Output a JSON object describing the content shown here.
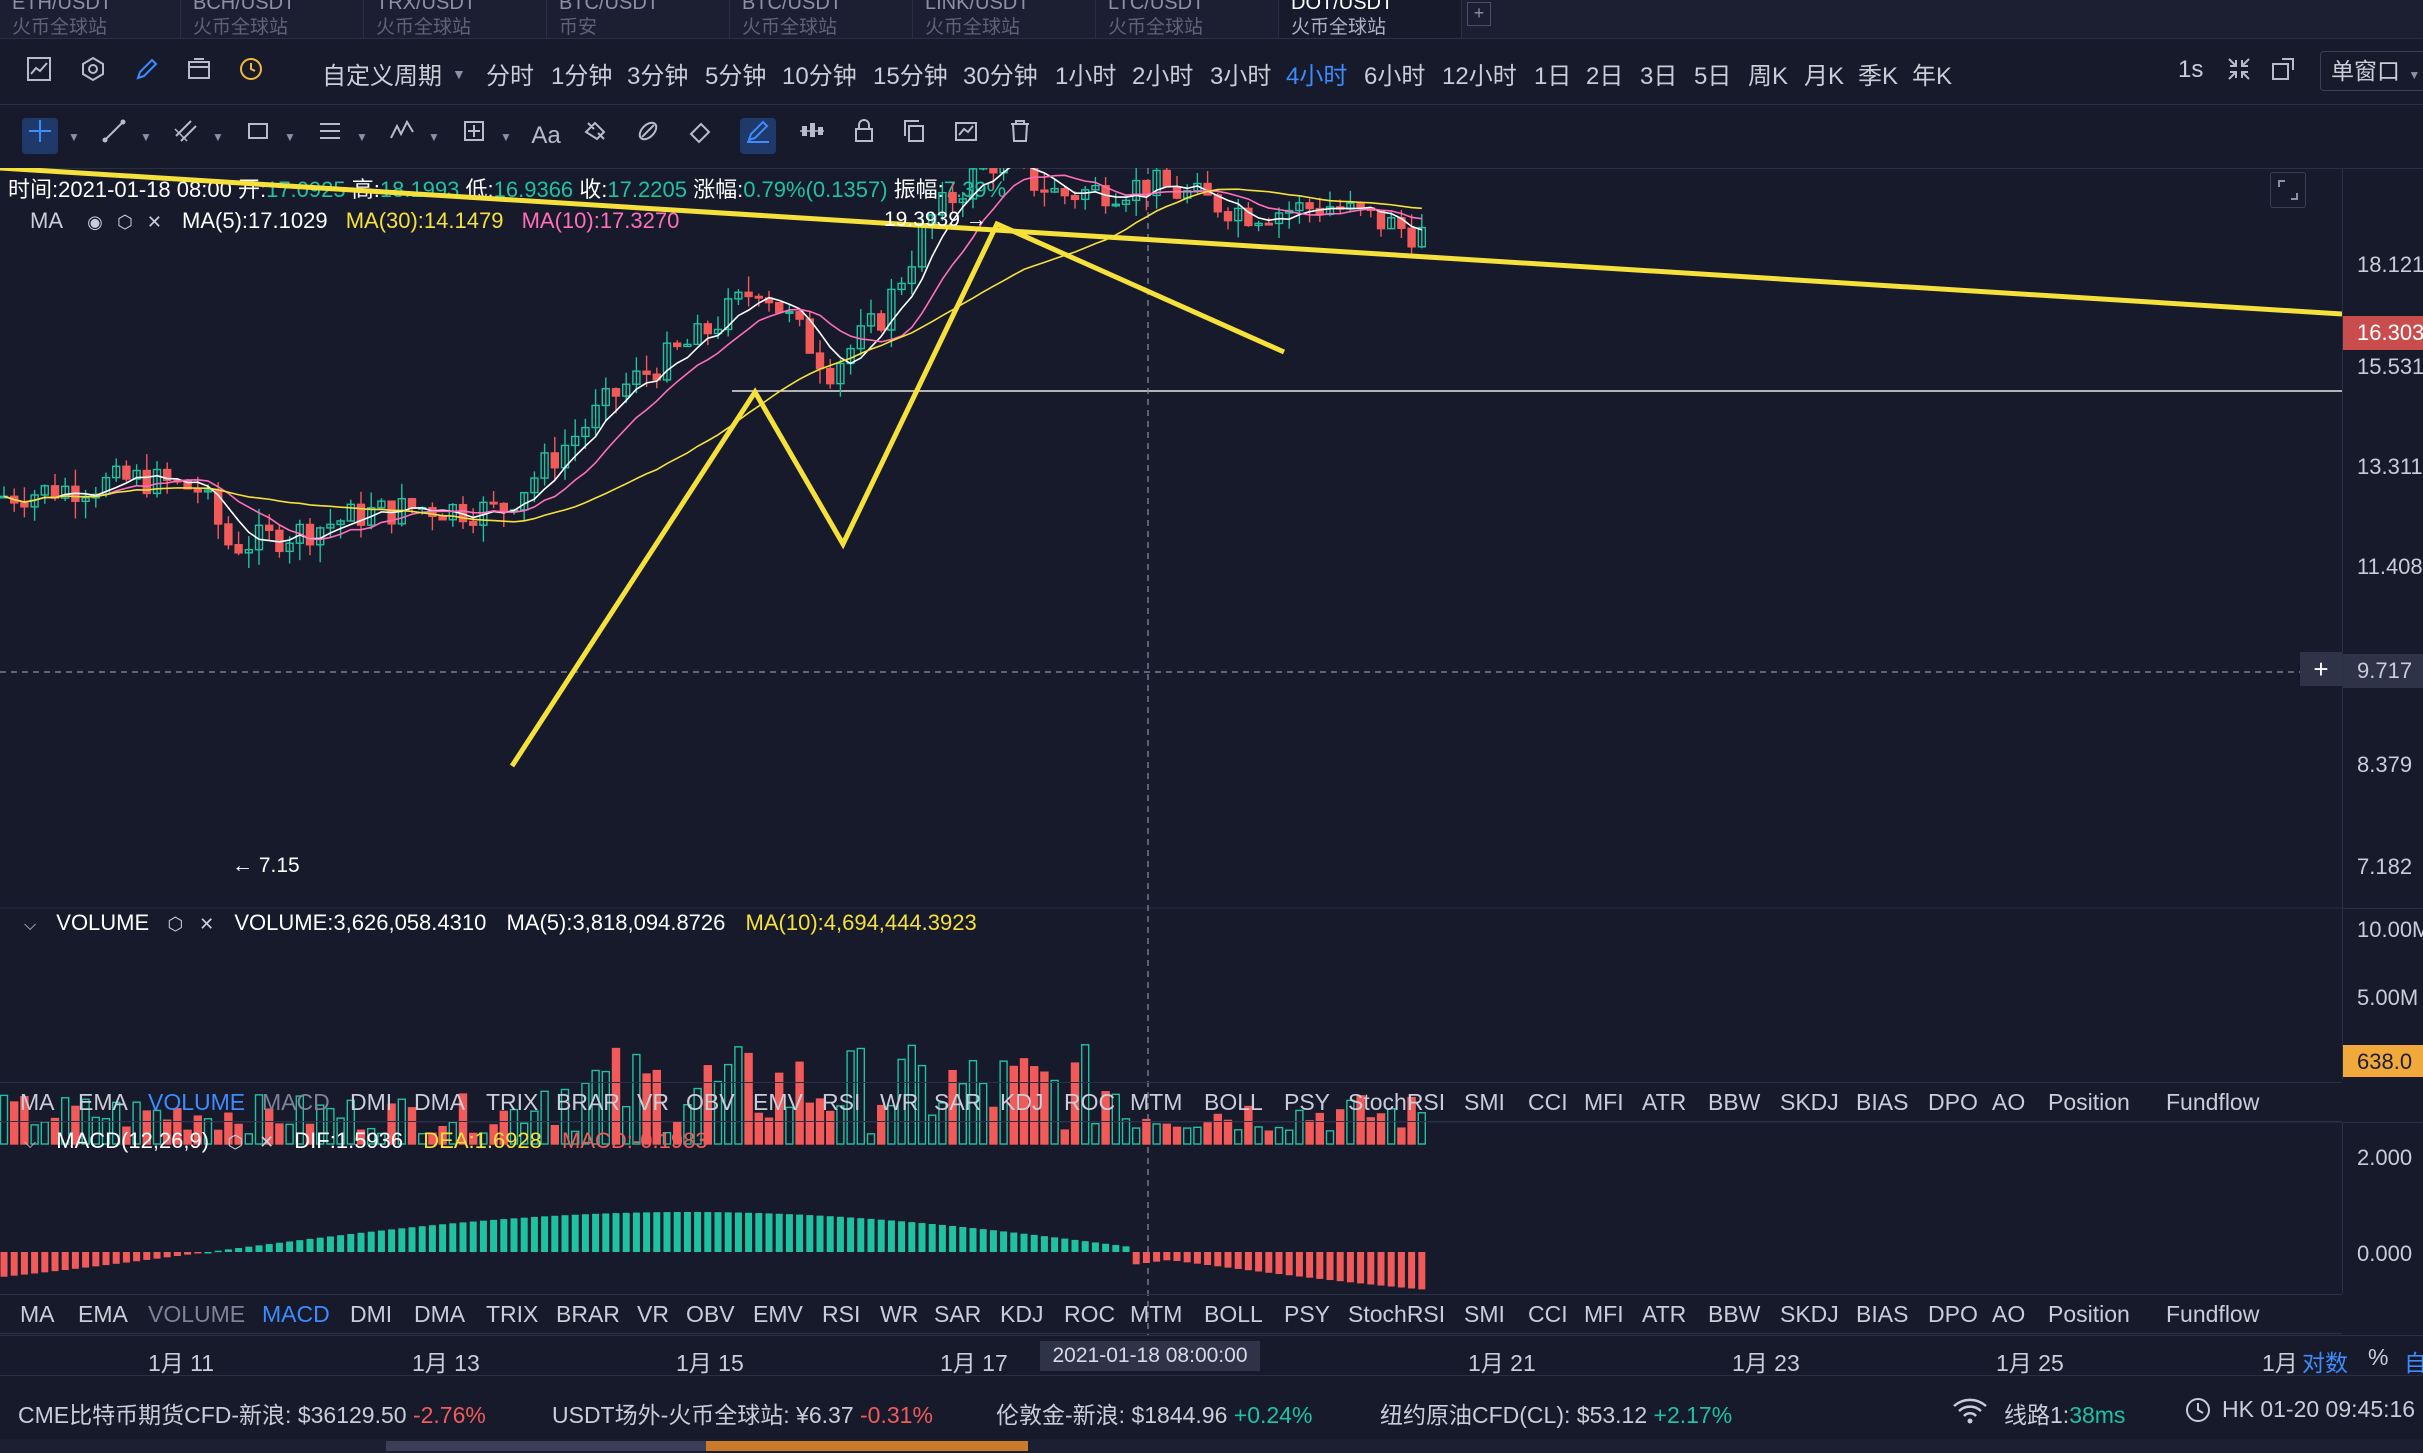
{
  "tabs": [
    {
      "pair": "ETH/USDT",
      "source": "火币全球站",
      "active": false
    },
    {
      "pair": "BCH/USDT",
      "source": "火币全球站",
      "active": false
    },
    {
      "pair": "TRX/USDT",
      "source": "火币全球站",
      "active": false
    },
    {
      "pair": "BTC/USDT",
      "source": "币安",
      "active": false
    },
    {
      "pair": "BTC/USDT",
      "source": "火币全球站",
      "active": false
    },
    {
      "pair": "LINK/USDT",
      "source": "火币全球站",
      "active": false
    },
    {
      "pair": "LTC/USDT",
      "source": "火币全球站",
      "active": false
    },
    {
      "pair": "DOT/USDT",
      "source": "火币全球站",
      "active": true
    }
  ],
  "tab_add": "+",
  "toolbar": {
    "custom_period": "自定义周期",
    "periods": [
      "分时",
      "1分钟",
      "3分钟",
      "5分钟",
      "10分钟",
      "15分钟",
      "30分钟",
      "1小时",
      "2小时",
      "3小时",
      "4小时",
      "6小时",
      "12小时",
      "1日",
      "2日",
      "3日",
      "5日",
      "周K",
      "月K",
      "季K",
      "年K"
    ],
    "active_period": "4小时",
    "refresh": "1s",
    "single_window": "单窗口"
  },
  "ohlc": {
    "time_label": "时间:",
    "time": "2021-01-18 08:00",
    "open_label": "开:",
    "open": "17.0925",
    "high_label": "高:",
    "high": "18.1993",
    "low_label": "低:",
    "low": "16.9366",
    "close_label": "收:",
    "close": "17.2205",
    "change_label": "涨幅:",
    "change": "0.79%(0.1357)",
    "amp_label": "振幅:",
    "amp": "7.39%"
  },
  "ma": {
    "name": "MA",
    "ma5": "MA(5):17.1029",
    "ma30": "MA(30):14.1479",
    "ma10": "MA(10):17.3270"
  },
  "annotations": {
    "high": "19.3939 →",
    "low": "← 7.15"
  },
  "price_axis": [
    "18.121",
    "16.303",
    "15.531",
    "13.311",
    "11.408",
    "9.717",
    "8.379",
    "7.182",
    "10.00M",
    "5.00M",
    "638.0",
    "2.000",
    "0.000"
  ],
  "volume": {
    "name": "VOLUME",
    "value": "VOLUME:3,626,058.4310",
    "ma5": "MA(5):3,818,094.8726",
    "ma10": "MA(10):4,694,444.3923"
  },
  "indicators": [
    "MA",
    "EMA",
    "VOLUME",
    "MACD",
    "DMI",
    "DMA",
    "TRIX",
    "BRAR",
    "VR",
    "OBV",
    "EMV",
    "RSI",
    "WR",
    "SAR",
    "KDJ",
    "ROC",
    "MTM",
    "BOLL",
    "PSY",
    "StochRSI",
    "SMI",
    "CCI",
    "MFI",
    "ATR",
    "BBW",
    "SKDJ",
    "BIAS",
    "DPO",
    "AO",
    "Position",
    "Fundflow"
  ],
  "macd": {
    "name": "MACD(12,26,9)",
    "dif": "DIF:1.5936",
    "dea": "DEA:1.6928",
    "macd": "MACD:-0.1983"
  },
  "time_axis": {
    "dates": [
      "1月 11",
      "1月 13",
      "1月 15",
      "1月 17",
      "1月 21",
      "1月 23",
      "1月 25"
    ],
    "crosshair": "2021-01-18 08:00:00",
    "scale": "1月",
    "log": "对数",
    "pct": "%",
    "auto": "自"
  },
  "ticker": [
    {
      "name": "CME比特币期货CFD-新浪:",
      "price": "$36129.50",
      "change": "-2.76%",
      "dir": "down"
    },
    {
      "name": "USDT场外-火币全球站:",
      "price": "¥6.37",
      "change": "-0.31%",
      "dir": "down"
    },
    {
      "name": "伦敦金-新浪:",
      "price": "$1844.96",
      "change": "+0.24%",
      "dir": "up"
    },
    {
      "name": "纽约原油CFD(CL):",
      "price": "$53.12",
      "change": "+2.17%",
      "dir": "up"
    }
  ],
  "status": {
    "line": "线路1:",
    "latency": "38ms",
    "clock": "HK 01-20 09:45:16"
  },
  "colors": {
    "up": "#1ec2a0",
    "down": "#f25a5a",
    "ma5": "#ffffff",
    "ma10": "#ff6fb8",
    "ma30": "#f5e13a",
    "accent": "#3d8bfd",
    "drawing": "#f5e13a"
  },
  "chart_data": {
    "type": "candlestick",
    "symbol": "DOT/USDT",
    "period": "4小时",
    "last_candle": {
      "time": "2021-01-18 08:00",
      "open": 17.0925,
      "high": 18.1993,
      "low": 16.9366,
      "close": 17.2205
    },
    "price_range": [
      7.15,
      19.3939
    ],
    "annotated_high": 19.3939,
    "annotated_low": 7.15,
    "current_price": 16.303,
    "crosshair_price": 9.717,
    "y_ticks": [
      18.121,
      15.531,
      13.311,
      11.408,
      9.717,
      8.379,
      7.182
    ],
    "volume_ticks": [
      "10.00M",
      "5.00M"
    ],
    "macd_ticks": [
      2.0,
      0.0
    ]
  }
}
